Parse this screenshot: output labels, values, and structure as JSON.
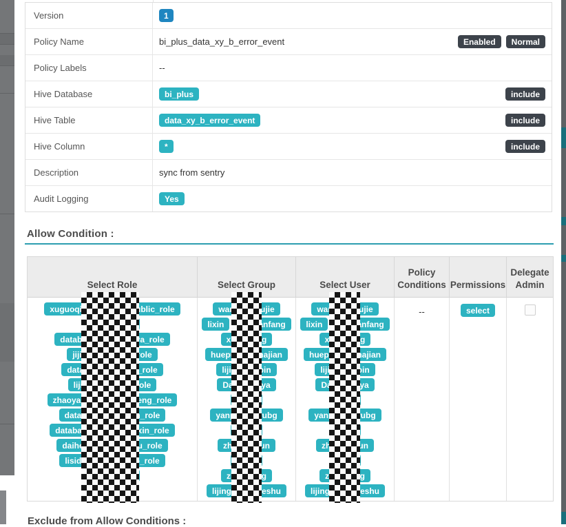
{
  "detail": {
    "rows": [
      {
        "label": "Version",
        "value": "1",
        "value_style": "badge-blue",
        "right_badges": []
      },
      {
        "label": "Policy Name",
        "value": "bi_plus_data_xy_b_error_event",
        "value_style": "text",
        "right_badges": [
          "Enabled",
          "Normal"
        ]
      },
      {
        "label": "Policy Labels",
        "value": "--",
        "value_style": "text",
        "right_badges": []
      },
      {
        "label": "Hive Database",
        "value": "bi_plus",
        "value_style": "badge-teal",
        "right_badges": [
          "include"
        ]
      },
      {
        "label": "Hive Table",
        "value": "data_xy_b_error_event",
        "value_style": "badge-teal",
        "right_badges": [
          "include"
        ]
      },
      {
        "label": "Hive Column",
        "value": "*",
        "value_style": "badge-teal",
        "right_badges": [
          "include"
        ]
      },
      {
        "label": "Description",
        "value": "sync from sentry",
        "value_style": "text",
        "right_badges": []
      },
      {
        "label": "Audit Logging",
        "value": "Yes",
        "value_style": "badge-teal",
        "right_badges": []
      }
    ]
  },
  "allow_section": {
    "title": "Allow Condition :",
    "headers": [
      "Select Role",
      "Select Group",
      "Select User",
      "Policy Conditions",
      "Permissions",
      "Delegate Admin"
    ],
    "policy_conditions": "--",
    "permissions_label": "select",
    "delegate_admin_checked": false,
    "role_rows": [
      [
        [
          "xuguoqian",
          "ublic_role"
        ]
      ],
      [
        [
          "",
          ""
        ]
      ],
      [
        [
          "databas",
          "ya_role"
        ]
      ],
      [
        [
          "jijiaw",
          "role"
        ]
      ],
      [
        [
          "databa",
          "_role"
        ]
      ],
      [
        [
          "lijie_",
          "role"
        ]
      ],
      [
        [
          "zhaoyanfa",
          "eng_role"
        ]
      ],
      [
        [
          "databa",
          "n_role"
        ]
      ],
      [
        [
          "database",
          "ixin_role"
        ]
      ],
      [
        [
          "daihesh",
          "u_role"
        ]
      ],
      [
        [
          "lisida_",
          "o_role"
        ]
      ],
      [
        [
          "",
          ""
        ]
      ]
    ],
    "group_rows": [
      [
        [
          "wan",
          "dujie"
        ]
      ],
      [
        [
          "lixin"
        ],
        [
          "",
          "anfang"
        ]
      ],
      [
        [
          "xu",
          "ng"
        ]
      ],
      [
        [
          "huepu",
          "majian"
        ]
      ],
      [
        [
          "lijie",
          "ibin"
        ]
      ],
      [
        [
          "Dat",
          "aya"
        ]
      ],
      [
        [
          "",
          ""
        ]
      ],
      [
        [
          "yanp",
          "wubg"
        ]
      ],
      [
        [
          "",
          ""
        ]
      ],
      [
        [
          "zha",
          "jun"
        ]
      ],
      [
        [
          "",
          ""
        ]
      ],
      [
        [
          "zh",
          "ng"
        ]
      ],
      [
        [
          "lijingy",
          "heshu"
        ]
      ]
    ],
    "user_rows": [
      [
        [
          "wan",
          "dujie"
        ]
      ],
      [
        [
          "lixin"
        ],
        [
          "",
          "anfang"
        ]
      ],
      [
        [
          "xu",
          "ng"
        ]
      ],
      [
        [
          "huepu",
          "majian"
        ]
      ],
      [
        [
          "lijie",
          "ibin"
        ]
      ],
      [
        [
          "Dat",
          "aya"
        ]
      ],
      [
        [
          "",
          ""
        ]
      ],
      [
        [
          "yanp",
          "wubg"
        ]
      ],
      [
        [
          "",
          ""
        ]
      ],
      [
        [
          "zha",
          "jun"
        ]
      ],
      [
        [
          "",
          ""
        ]
      ],
      [
        [
          "zh",
          "ng"
        ]
      ],
      [
        [
          "lijingy",
          "heshu"
        ]
      ]
    ]
  },
  "exclude_section": {
    "title": "Exclude from Allow Conditions :"
  },
  "colors": {
    "teal_badge": "#2db3c1",
    "blue_badge": "#1f86c0",
    "dark_badge": "#3d434b",
    "section_underline": "#2c9db0"
  }
}
